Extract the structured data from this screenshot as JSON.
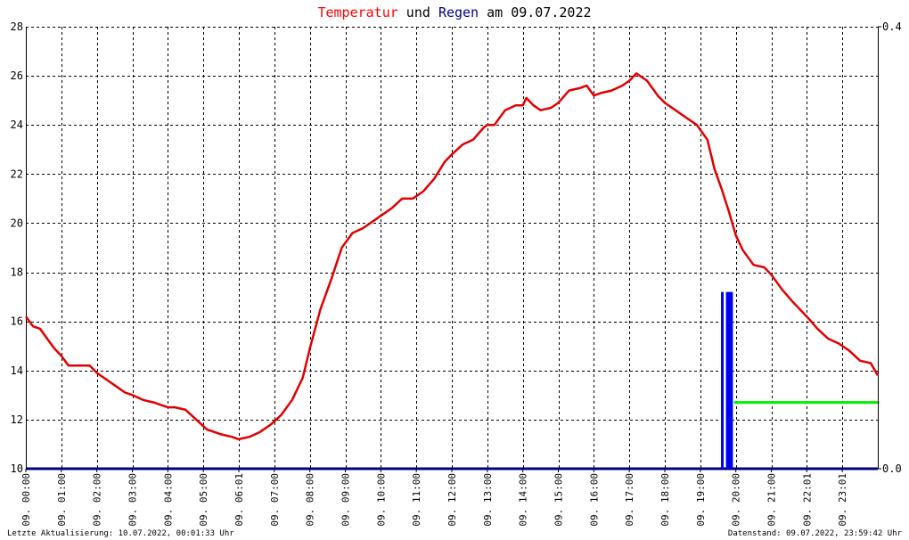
{
  "chart_data": {
    "type": "line",
    "title": {
      "part1": "Temperatur",
      "part2": " und ",
      "part3": "Regen",
      "part4": " am 09.07.2022",
      "color1": "#ff0000",
      "color2": "#000000",
      "color3": "#000080",
      "color4": "#000000"
    },
    "xlim": [
      0,
      24
    ],
    "ylim_left": [
      10,
      28
    ],
    "ylim_right": [
      0.0,
      0.4
    ],
    "y_ticks_left": [
      10,
      12,
      14,
      16,
      18,
      20,
      22,
      24,
      26,
      28
    ],
    "y_tick_labels_right": [
      "0.0",
      "0.4"
    ],
    "x_ticks": [
      0,
      1,
      2,
      3,
      4,
      5,
      6,
      7,
      8,
      9,
      10,
      11,
      12,
      13,
      14,
      15,
      16,
      17,
      18,
      19,
      20,
      21,
      22,
      23
    ],
    "x_tick_labels": [
      "09. 00:00",
      "09. 01:00",
      "09. 02:00",
      "09. 03:00",
      "09. 04:00",
      "09. 05:00",
      "09. 06:01",
      "09. 07:00",
      "09. 08:00",
      "09. 09:00",
      "09. 10:00",
      "09. 11:00",
      "09. 12:00",
      "09. 13:00",
      "09. 14:00",
      "09. 15:00",
      "09. 16:00",
      "09. 17:00",
      "09. 18:00",
      "09. 19:00",
      "09. 20:00",
      "09. 21:00",
      "09. 22:01",
      "09. 23:01"
    ],
    "grid": true,
    "temperature": {
      "color": "#e00000",
      "x": [
        0.0,
        0.2,
        0.4,
        0.6,
        0.8,
        1.0,
        1.2,
        1.5,
        1.8,
        2.0,
        2.2,
        2.5,
        2.8,
        3.0,
        3.3,
        3.6,
        4.0,
        4.2,
        4.5,
        4.8,
        5.1,
        5.5,
        5.8,
        6.0,
        6.3,
        6.6,
        6.9,
        7.2,
        7.5,
        7.8,
        8.0,
        8.3,
        8.6,
        8.9,
        9.2,
        9.5,
        9.8,
        10.0,
        10.3,
        10.6,
        10.9,
        11.2,
        11.5,
        11.8,
        12.0,
        12.3,
        12.6,
        12.9,
        13.0,
        13.2,
        13.5,
        13.8,
        14.0,
        14.1,
        14.3,
        14.5,
        14.8,
        15.0,
        15.3,
        15.6,
        15.8,
        16.0,
        16.2,
        16.5,
        16.8,
        17.0,
        17.2,
        17.5,
        17.8,
        18.0,
        18.3,
        18.6,
        18.9,
        19.2,
        19.4,
        19.6,
        19.8,
        20.0,
        20.2,
        20.5,
        20.8,
        21.0,
        21.3,
        21.6,
        22.0,
        22.3,
        22.6,
        22.9,
        23.2,
        23.5,
        23.8,
        24.0
      ],
      "y": [
        16.2,
        15.8,
        15.7,
        15.3,
        14.9,
        14.6,
        14.2,
        14.2,
        14.2,
        13.9,
        13.7,
        13.4,
        13.1,
        13.0,
        12.8,
        12.7,
        12.5,
        12.5,
        12.4,
        12.0,
        11.6,
        11.4,
        11.3,
        11.2,
        11.3,
        11.5,
        11.8,
        12.2,
        12.8,
        13.7,
        14.9,
        16.5,
        17.7,
        19.0,
        19.6,
        19.8,
        20.1,
        20.3,
        20.6,
        21.0,
        21.0,
        21.3,
        21.8,
        22.5,
        22.8,
        23.2,
        23.4,
        23.9,
        24.0,
        24.0,
        24.6,
        24.8,
        24.8,
        25.1,
        24.8,
        24.6,
        24.7,
        24.9,
        25.4,
        25.5,
        25.6,
        25.2,
        25.3,
        25.4,
        25.6,
        25.8,
        26.1,
        25.8,
        25.2,
        24.9,
        24.6,
        24.3,
        24.0,
        23.4,
        22.2,
        21.4,
        20.5,
        19.5,
        18.9,
        18.3,
        18.2,
        17.9,
        17.3,
        16.8,
        16.2,
        15.7,
        15.3,
        15.1,
        14.8,
        14.4,
        14.3,
        13.8
      ]
    },
    "rain_bars": {
      "color": "#0000ee",
      "x": [
        19.62,
        19.76,
        19.82,
        19.88
      ],
      "y": [
        0.16,
        0.16,
        0.16,
        0.16
      ]
    },
    "rain_total": {
      "color": "#00ee00",
      "x": [
        19.95,
        24.0
      ],
      "y": [
        0.06,
        0.06
      ]
    },
    "baseline": {
      "color": "#000080",
      "y": 0.0
    }
  },
  "footer": {
    "left": "Letzte Aktualisierung: 10.07.2022, 00:01:33 Uhr",
    "right": "Datenstand: 09.07.2022, 23:59:42 Uhr"
  }
}
